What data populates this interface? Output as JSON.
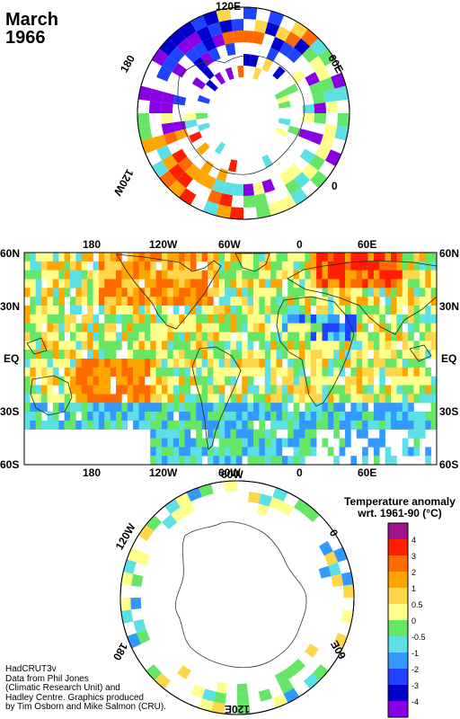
{
  "title": {
    "month": "March",
    "year": "1966"
  },
  "north_polar_labels": {
    "lon_120e": "120E",
    "lon_60e": "60E",
    "lon_0": "0",
    "lon_120w": "120W",
    "lon_180": "180"
  },
  "map_labels": {
    "top_lon": [
      "180",
      "120W",
      "60W",
      "0",
      "60E"
    ],
    "bottom_lon": [
      "180",
      "120W",
      "60W",
      "0",
      "60E"
    ],
    "left_lat": [
      "60N",
      "30N",
      "EQ",
      "30S",
      "60S"
    ],
    "right_lat": [
      "60N",
      "30N",
      "EQ",
      "30S",
      "60S"
    ]
  },
  "south_polar_labels": {
    "lon_60w": "60W",
    "lon_120w": "120W",
    "lon_0": "0",
    "lon_180": "180",
    "lon_60e": "60E",
    "lon_120e": "120E"
  },
  "legend": {
    "title_line1": "Temperature anomaly",
    "title_line2": "wrt. 1961-90  (°C)",
    "levels": [
      "4",
      "3",
      "2",
      "1",
      "0.5",
      "0",
      "-0.5",
      "-1",
      "-2",
      "-3",
      "-4"
    ],
    "colors": [
      "#a0158c",
      "#ff1f00",
      "#ff6a00",
      "#ffa500",
      "#ffd54a",
      "#ffff8c",
      "#66e666",
      "#5ce0e6",
      "#3399ff",
      "#1f44ff",
      "#0000cc",
      "#8a00e6"
    ]
  },
  "credit": {
    "line1": "HadCRUT3v",
    "line2": "Data from Phil Jones",
    "line3": "(Climatic Research Unit) and",
    "line4": "Hadley Centre.  Graphics produced",
    "line5": "by Tim Osborn and Mike Salmon (CRU)."
  }
}
